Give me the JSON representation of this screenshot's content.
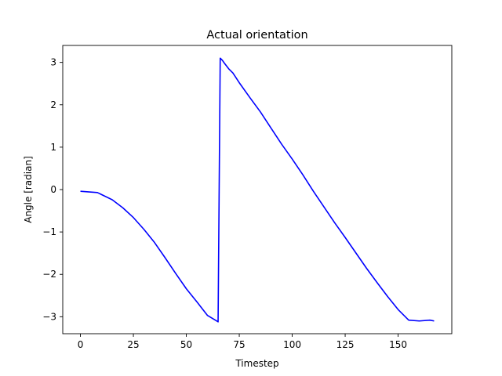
{
  "chart_data": {
    "type": "line",
    "title": "Actual orientation",
    "xlabel": "Timestep",
    "ylabel": "Angle [radian]",
    "xlim": [
      -8.35,
      175.35
    ],
    "ylim": [
      -3.4,
      3.4
    ],
    "xticks": [
      0,
      25,
      50,
      75,
      100,
      125,
      150
    ],
    "yticks": [
      -3,
      -2,
      -1,
      0,
      1,
      2,
      3
    ],
    "grid": false,
    "series": [
      {
        "color": "#0000ff",
        "x": [
          0,
          8,
          15,
          20,
          25,
          30,
          35,
          40,
          45,
          50,
          55,
          60,
          65,
          66,
          67,
          68,
          70,
          72,
          75,
          80,
          85,
          90,
          95,
          100,
          105,
          110,
          115,
          120,
          125,
          130,
          135,
          140,
          145,
          150,
          155,
          160,
          165,
          167
        ],
        "y": [
          -0.04,
          -0.07,
          -0.24,
          -0.43,
          -0.66,
          -0.94,
          -1.25,
          -1.61,
          -1.98,
          -2.34,
          -2.65,
          -2.97,
          -3.12,
          3.1,
          3.05,
          2.98,
          2.85,
          2.75,
          2.52,
          2.17,
          1.83,
          1.45,
          1.07,
          0.72,
          0.35,
          -0.04,
          -0.41,
          -0.78,
          -1.13,
          -1.49,
          -1.85,
          -2.19,
          -2.52,
          -2.83,
          -3.08,
          -3.1,
          -3.08,
          -3.1
        ]
      }
    ]
  }
}
